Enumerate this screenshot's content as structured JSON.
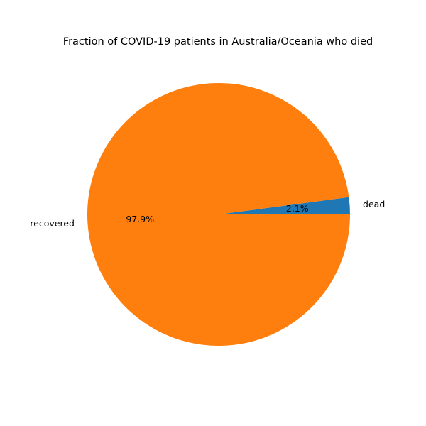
{
  "chart_data": {
    "type": "pie",
    "title": "Fraction of COVID-19 patients in Australia/Oceania who died",
    "slices": [
      {
        "label": "dead",
        "value": 2.1,
        "pct_label": "2.1%",
        "color": "#1f77b4"
      },
      {
        "label": "recovered",
        "value": 97.9,
        "pct_label": "97.9%",
        "color": "#ff7f0e"
      }
    ],
    "start_angle_deg": 0,
    "direction": "counterclockwise"
  }
}
